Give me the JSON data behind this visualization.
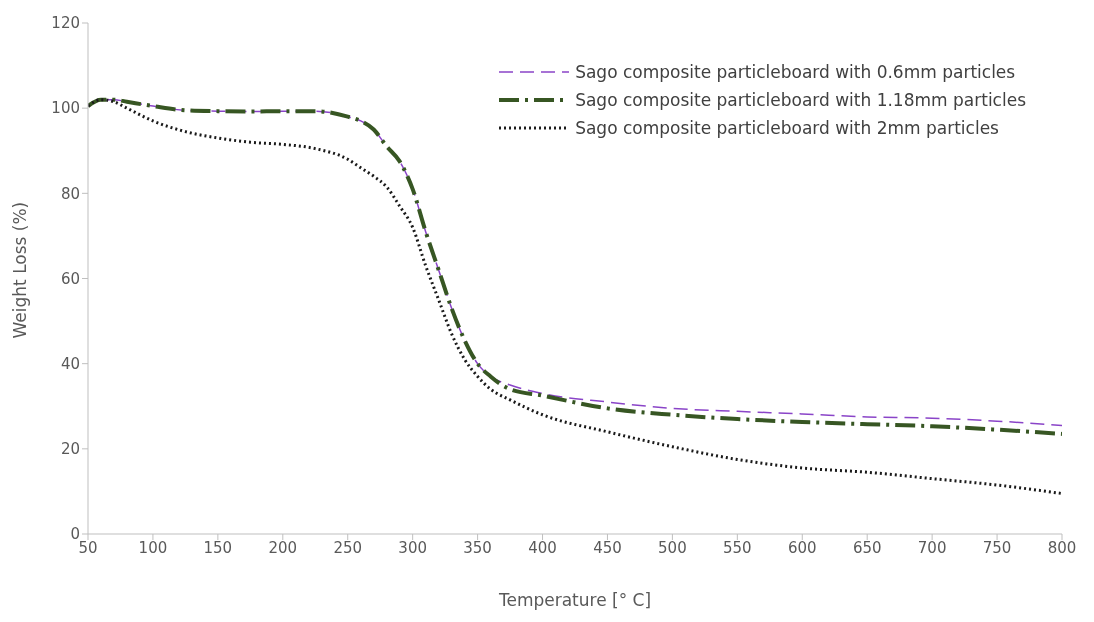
{
  "chart_data": {
    "type": "line",
    "xlabel": "Temperature  [° C]",
    "ylabel": "Weight Loss (%)",
    "x": [
      50,
      60,
      70,
      80,
      100,
      125,
      150,
      175,
      200,
      225,
      250,
      260,
      270,
      280,
      290,
      300,
      310,
      320,
      330,
      340,
      350,
      360,
      375,
      400,
      450,
      500,
      550,
      600,
      650,
      700,
      750,
      800
    ],
    "xlim": [
      50,
      800
    ],
    "xticks": [
      50,
      100,
      150,
      200,
      250,
      300,
      350,
      400,
      450,
      500,
      550,
      600,
      650,
      700,
      750,
      800
    ],
    "ylim": [
      0,
      120
    ],
    "yticks": [
      0,
      20,
      40,
      60,
      80,
      100,
      120
    ],
    "grid": false,
    "legend": "top right",
    "marker": "none",
    "series": [
      {
        "name": "Sago composite particleboard with 0.6mm particles",
        "color": "#8a44c8",
        "line_style": "dashed",
        "values": [
          100.5,
          102,
          102,
          101.5,
          100.5,
          99.5,
          99.3,
          99.2,
          99.3,
          99.3,
          98,
          97,
          95,
          91,
          87.5,
          81,
          71,
          62,
          53,
          45.5,
          40,
          37,
          35,
          33,
          31,
          29.5,
          28.8,
          28.2,
          27.5,
          27.2,
          26.5,
          25.5
        ]
      },
      {
        "name": "Sago composite particleboard with 1.18mm particles",
        "color": "#375623",
        "line_style": "dashdot",
        "values": [
          100.5,
          102,
          102,
          101.5,
          100.5,
          99.5,
          99.3,
          99.2,
          99.3,
          99.3,
          98,
          97,
          95,
          91,
          87.5,
          81,
          71,
          62,
          53,
          45.5,
          40,
          37,
          34,
          32.5,
          29.5,
          28,
          27,
          26.3,
          25.8,
          25.3,
          24.5,
          23.5
        ]
      },
      {
        "name": "Sago composite particleboard with 2mm particles",
        "color": "#1a1a1a",
        "line_style": "dotted",
        "values": [
          100.5,
          102,
          101.5,
          100,
          97,
          94.5,
          93,
          92,
          91.5,
          90.5,
          88,
          86,
          84,
          81.5,
          77,
          72,
          63,
          55,
          47,
          41,
          37,
          34,
          31.5,
          28,
          24,
          20.5,
          17.5,
          15.5,
          14.5,
          13,
          11.5,
          9.5
        ]
      }
    ]
  }
}
